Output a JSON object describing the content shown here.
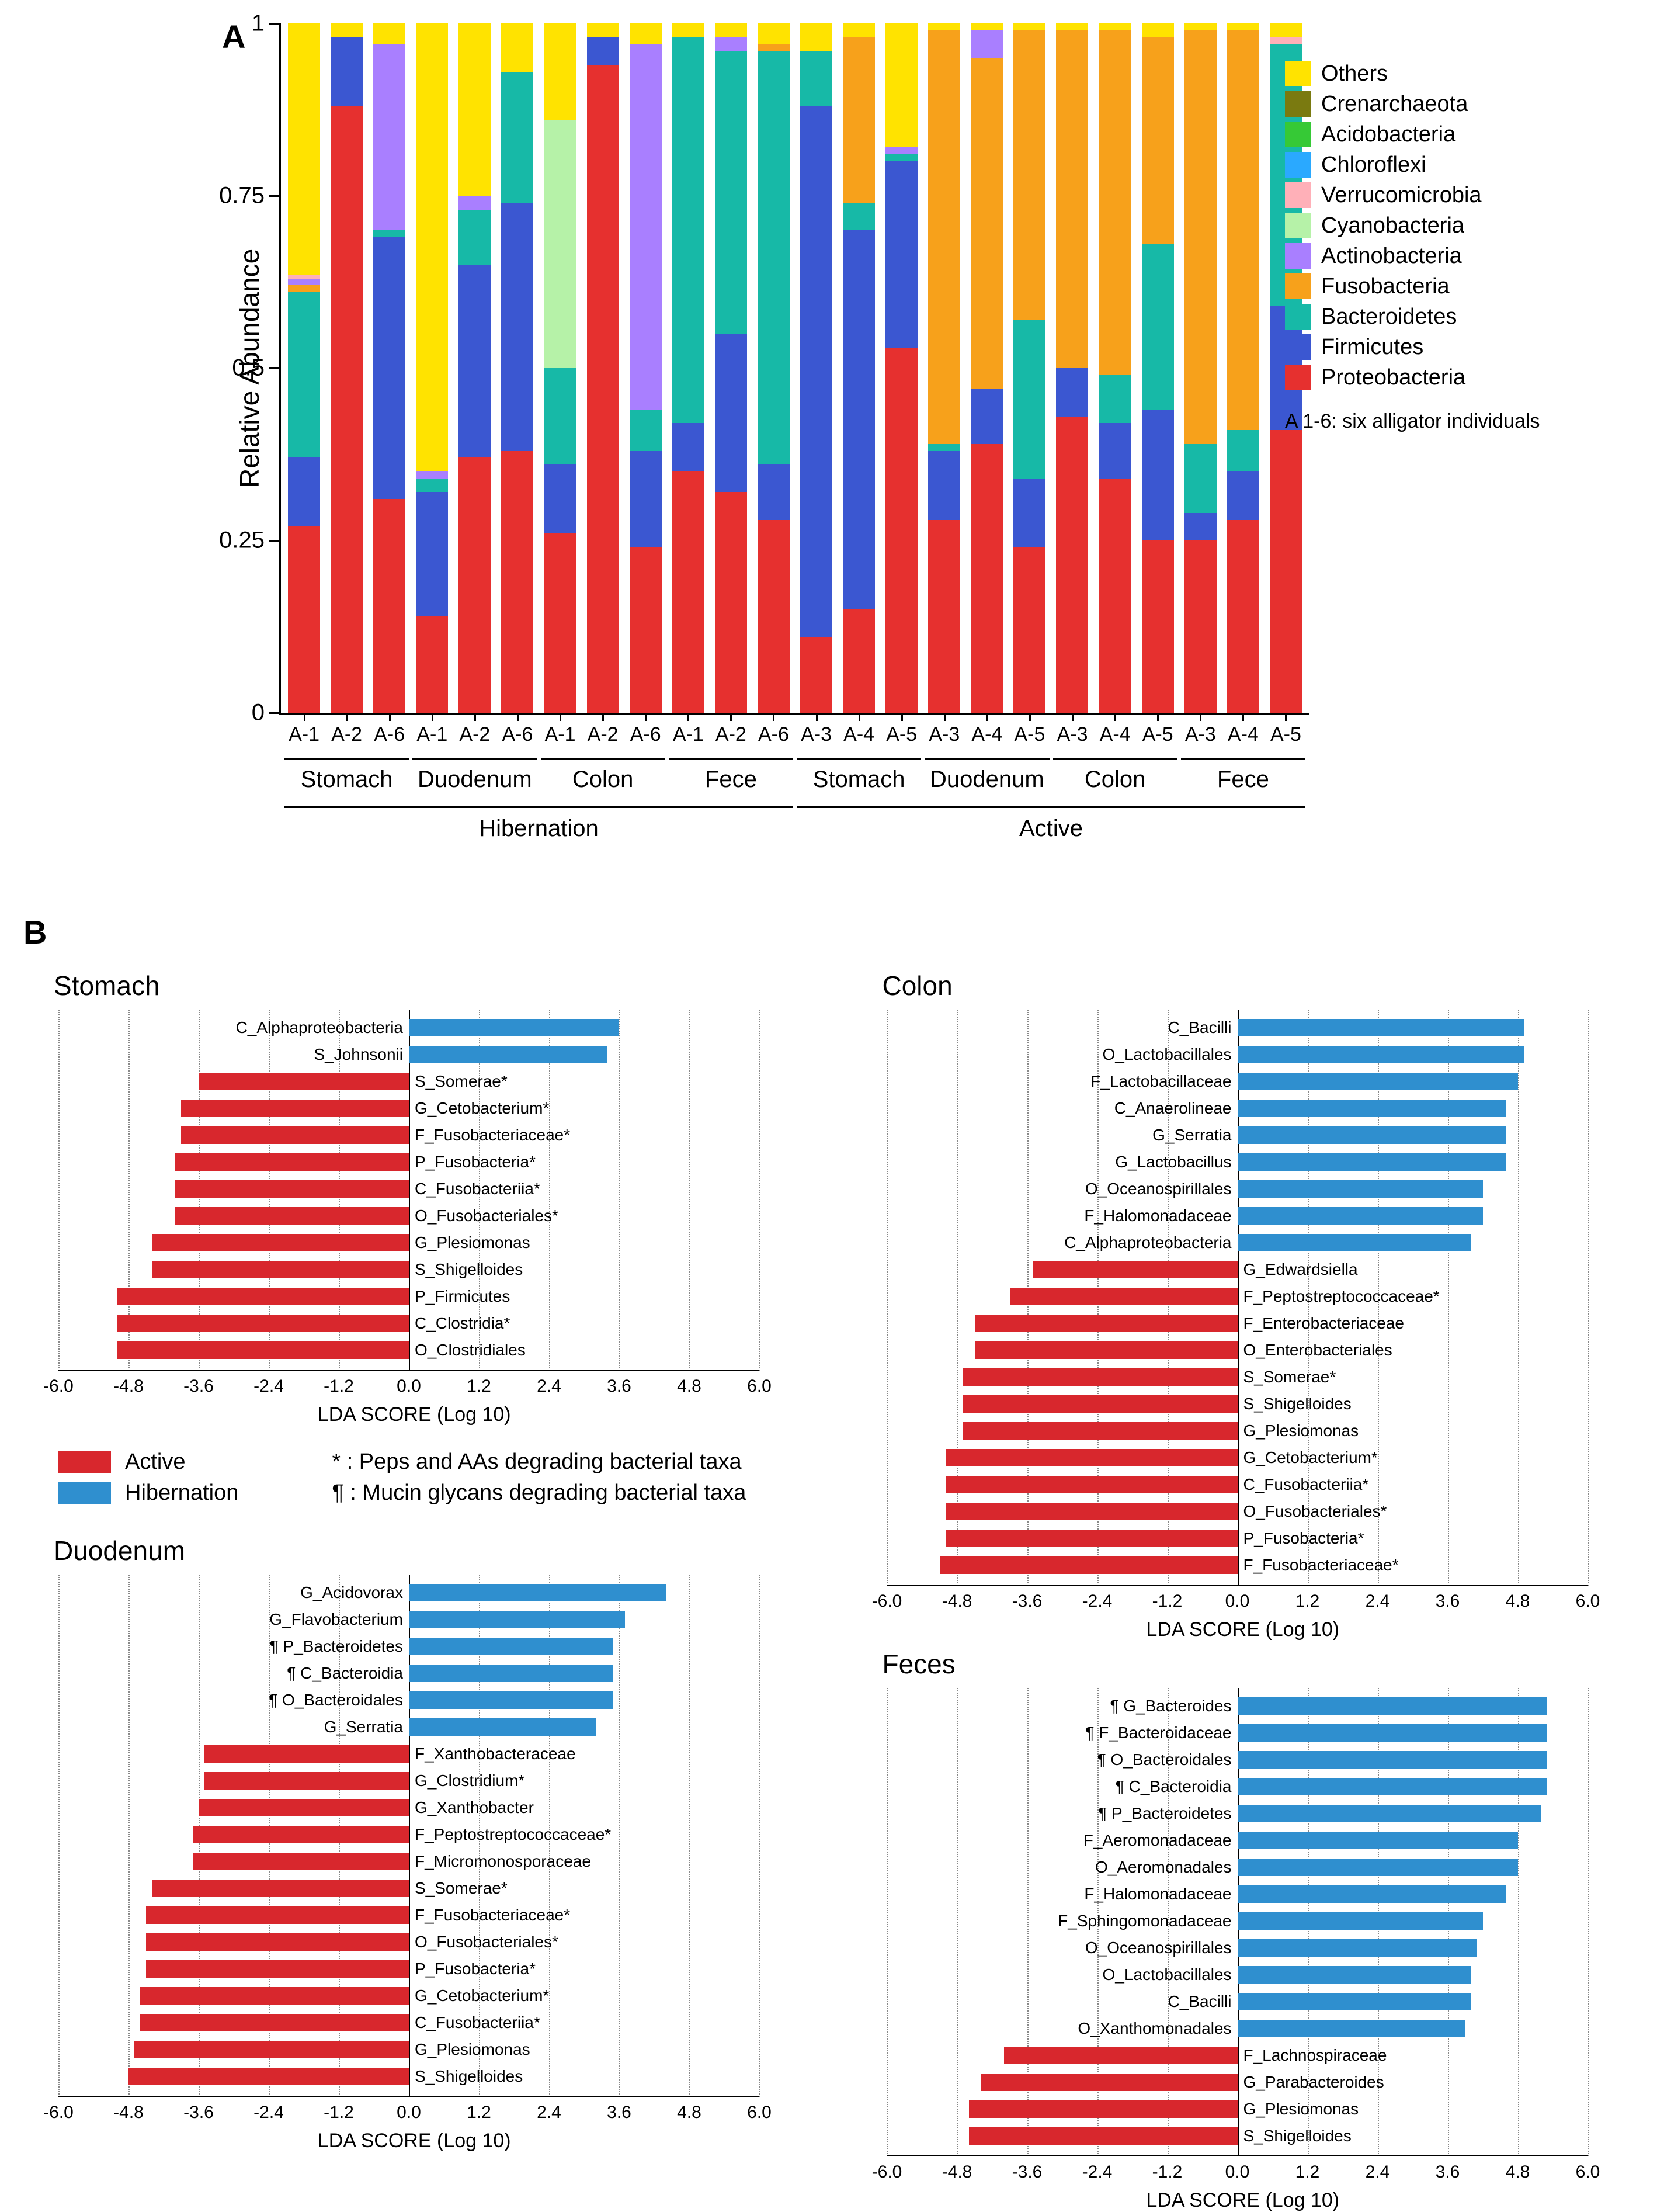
{
  "colors": {
    "active": "#d8272d",
    "hibernation": "#2f8fcf",
    "axis": "#000000",
    "grid": "#888888"
  },
  "panelA": {
    "label": "A",
    "ylabel": "Relative Abundance",
    "yticks": [
      0,
      0.25,
      0.5,
      0.75,
      1
    ],
    "note": "A 1-6: six alligator individuals",
    "taxa": [
      {
        "name": "Others",
        "color": "#ffe300"
      },
      {
        "name": "Crenarchaeota",
        "color": "#7a7a10"
      },
      {
        "name": "Acidobacteria",
        "color": "#36c936"
      },
      {
        "name": "Chloroflexi",
        "color": "#2aa9ff"
      },
      {
        "name": "Verrucomicrobia",
        "color": "#ffb0b8"
      },
      {
        "name": "Cyanobacteria",
        "color": "#b6f2a8"
      },
      {
        "name": "Actinobacteria",
        "color": "#a97fff"
      },
      {
        "name": "Fusobacteria",
        "color": "#f7a11b"
      },
      {
        "name": "Bacteroidetes",
        "color": "#17b9a7"
      },
      {
        "name": "Firmicutes",
        "color": "#3b57d1"
      },
      {
        "name": "Proteobacteria",
        "color": "#e6302f"
      }
    ],
    "samples": [
      {
        "id": "A-1",
        "vals": {
          "Proteobacteria": 0.27,
          "Firmicutes": 0.1,
          "Bacteroidetes": 0.24,
          "Fusobacteria": 0.01,
          "Actinobacteria": 0.01,
          "Verrucomicrobia": 0.005,
          "Others": 0.365
        }
      },
      {
        "id": "A-2",
        "vals": {
          "Proteobacteria": 0.88,
          "Firmicutes": 0.1,
          "Others": 0.02
        }
      },
      {
        "id": "A-6",
        "vals": {
          "Proteobacteria": 0.31,
          "Firmicutes": 0.38,
          "Bacteroidetes": 0.01,
          "Actinobacteria": 0.27,
          "Others": 0.03
        }
      },
      {
        "id": "A-1",
        "vals": {
          "Proteobacteria": 0.14,
          "Firmicutes": 0.18,
          "Bacteroidetes": 0.02,
          "Actinobacteria": 0.01,
          "Others": 0.65
        }
      },
      {
        "id": "A-2",
        "vals": {
          "Proteobacteria": 0.37,
          "Firmicutes": 0.28,
          "Bacteroidetes": 0.08,
          "Actinobacteria": 0.02,
          "Others": 0.25
        }
      },
      {
        "id": "A-6",
        "vals": {
          "Proteobacteria": 0.38,
          "Firmicutes": 0.36,
          "Bacteroidetes": 0.19,
          "Others": 0.07
        }
      },
      {
        "id": "A-1",
        "vals": {
          "Proteobacteria": 0.26,
          "Firmicutes": 0.1,
          "Bacteroidetes": 0.14,
          "Cyanobacteria": 0.36,
          "Others": 0.14
        }
      },
      {
        "id": "A-2",
        "vals": {
          "Proteobacteria": 0.94,
          "Firmicutes": 0.04,
          "Others": 0.02
        }
      },
      {
        "id": "A-6",
        "vals": {
          "Proteobacteria": 0.24,
          "Firmicutes": 0.14,
          "Bacteroidetes": 0.06,
          "Actinobacteria": 0.53,
          "Others": 0.03
        }
      },
      {
        "id": "A-1",
        "vals": {
          "Proteobacteria": 0.35,
          "Firmicutes": 0.07,
          "Bacteroidetes": 0.56,
          "Others": 0.02
        }
      },
      {
        "id": "A-2",
        "vals": {
          "Proteobacteria": 0.32,
          "Firmicutes": 0.23,
          "Bacteroidetes": 0.41,
          "Actinobacteria": 0.02,
          "Others": 0.02
        }
      },
      {
        "id": "A-6",
        "vals": {
          "Proteobacteria": 0.28,
          "Firmicutes": 0.08,
          "Bacteroidetes": 0.6,
          "Fusobacteria": 0.01,
          "Others": 0.03
        }
      },
      {
        "id": "A-3",
        "vals": {
          "Proteobacteria": 0.11,
          "Firmicutes": 0.77,
          "Bacteroidetes": 0.08,
          "Others": 0.04
        }
      },
      {
        "id": "A-4",
        "vals": {
          "Proteobacteria": 0.15,
          "Firmicutes": 0.55,
          "Bacteroidetes": 0.04,
          "Fusobacteria": 0.24,
          "Others": 0.02
        }
      },
      {
        "id": "A-5",
        "vals": {
          "Proteobacteria": 0.53,
          "Firmicutes": 0.27,
          "Bacteroidetes": 0.01,
          "Actinobacteria": 0.01,
          "Others": 0.18
        }
      },
      {
        "id": "A-3",
        "vals": {
          "Proteobacteria": 0.28,
          "Firmicutes": 0.1,
          "Bacteroidetes": 0.01,
          "Fusobacteria": 0.6,
          "Others": 0.01
        }
      },
      {
        "id": "A-4",
        "vals": {
          "Proteobacteria": 0.39,
          "Firmicutes": 0.08,
          "Actinobacteria": 0.04,
          "Fusobacteria": 0.48,
          "Others": 0.01
        }
      },
      {
        "id": "A-5",
        "vals": {
          "Proteobacteria": 0.24,
          "Firmicutes": 0.1,
          "Bacteroidetes": 0.23,
          "Fusobacteria": 0.42,
          "Others": 0.01
        }
      },
      {
        "id": "A-3",
        "vals": {
          "Proteobacteria": 0.43,
          "Firmicutes": 0.07,
          "Fusobacteria": 0.49,
          "Others": 0.01
        }
      },
      {
        "id": "A-4",
        "vals": {
          "Proteobacteria": 0.34,
          "Firmicutes": 0.08,
          "Bacteroidetes": 0.07,
          "Fusobacteria": 0.5,
          "Others": 0.01
        }
      },
      {
        "id": "A-5",
        "vals": {
          "Proteobacteria": 0.25,
          "Firmicutes": 0.19,
          "Bacteroidetes": 0.24,
          "Fusobacteria": 0.3,
          "Others": 0.02
        }
      },
      {
        "id": "A-3",
        "vals": {
          "Proteobacteria": 0.25,
          "Firmicutes": 0.04,
          "Bacteroidetes": 0.1,
          "Fusobacteria": 0.6,
          "Others": 0.01
        }
      },
      {
        "id": "A-4",
        "vals": {
          "Proteobacteria": 0.28,
          "Firmicutes": 0.07,
          "Bacteroidetes": 0.06,
          "Fusobacteria": 0.58,
          "Others": 0.01
        }
      },
      {
        "id": "A-5",
        "vals": {
          "Proteobacteria": 0.41,
          "Firmicutes": 0.18,
          "Bacteroidetes": 0.38,
          "Verrucomicrobia": 0.01,
          "Others": 0.02
        }
      }
    ],
    "sections": [
      {
        "label": "Stomach",
        "span": [
          0,
          2
        ]
      },
      {
        "label": "Duodenum",
        "span": [
          3,
          5
        ]
      },
      {
        "label": "Colon",
        "span": [
          6,
          8
        ]
      },
      {
        "label": "Fece",
        "span": [
          9,
          11
        ]
      },
      {
        "label": "Stomach",
        "span": [
          12,
          14
        ]
      },
      {
        "label": "Duodenum",
        "span": [
          15,
          17
        ]
      },
      {
        "label": "Colon",
        "span": [
          18,
          20
        ]
      },
      {
        "label": "Fece",
        "span": [
          21,
          23
        ]
      }
    ],
    "periods": [
      {
        "label": "Hibernation",
        "span": [
          0,
          11
        ]
      },
      {
        "label": "Active",
        "span": [
          12,
          23
        ]
      }
    ]
  },
  "panelB": {
    "label": "B",
    "xlabel": "LDA SCORE (Log 10)",
    "xticks": [
      -6.0,
      -4.8,
      -3.6,
      -2.4,
      -1.2,
      0.0,
      1.2,
      2.4,
      3.6,
      4.8,
      6.0
    ],
    "legend": {
      "active": "Active",
      "hibernation": "Hibernation",
      "note_star": "* : Peps and AAs degrading bacterial taxa",
      "note_para": "¶ : Mucin glycans degrading bacterial taxa"
    },
    "charts": [
      {
        "title": "Stomach",
        "rows": [
          {
            "label": "C_Alphaproteobacteria",
            "val": 3.6,
            "grp": "h"
          },
          {
            "label": "S_Johnsonii",
            "val": 3.4,
            "grp": "h"
          },
          {
            "label": "S_Somerae*",
            "val": -3.6,
            "grp": "a"
          },
          {
            "label": "G_Cetobacterium*",
            "val": -3.9,
            "grp": "a"
          },
          {
            "label": "F_Fusobacteriaceae*",
            "val": -3.9,
            "grp": "a"
          },
          {
            "label": "P_Fusobacteria*",
            "val": -4.0,
            "grp": "a"
          },
          {
            "label": "C_Fusobacteriia*",
            "val": -4.0,
            "grp": "a"
          },
          {
            "label": "O_Fusobacteriales*",
            "val": -4.0,
            "grp": "a"
          },
          {
            "label": "G_Plesiomonas",
            "val": -4.4,
            "grp": "a"
          },
          {
            "label": "S_Shigelloides",
            "val": -4.4,
            "grp": "a"
          },
          {
            "label": "P_Firmicutes",
            "val": -5.0,
            "grp": "a"
          },
          {
            "label": "C_Clostridia*",
            "val": -5.0,
            "grp": "a"
          },
          {
            "label": "O_Clostridiales",
            "val": -5.0,
            "grp": "a"
          }
        ]
      },
      {
        "title": "Colon",
        "rows": [
          {
            "label": "C_Bacilli",
            "val": 4.9,
            "grp": "h"
          },
          {
            "label": "O_Lactobacillales",
            "val": 4.9,
            "grp": "h"
          },
          {
            "label": "F_Lactobacillaceae",
            "val": 4.8,
            "grp": "h"
          },
          {
            "label": "C_Anaerolineae",
            "val": 4.6,
            "grp": "h"
          },
          {
            "label": "G_Serratia",
            "val": 4.6,
            "grp": "h"
          },
          {
            "label": "G_Lactobacillus",
            "val": 4.6,
            "grp": "h"
          },
          {
            "label": "O_Oceanospirillales",
            "val": 4.2,
            "grp": "h"
          },
          {
            "label": "F_Halomonadaceae",
            "val": 4.2,
            "grp": "h"
          },
          {
            "label": "C_Alphaproteobacteria",
            "val": 4.0,
            "grp": "h"
          },
          {
            "label": "G_Edwardsiella",
            "val": -3.5,
            "grp": "a"
          },
          {
            "label": "F_Peptostreptococcaceae*",
            "val": -3.9,
            "grp": "a"
          },
          {
            "label": "F_Enterobacteriaceae",
            "val": -4.5,
            "grp": "a"
          },
          {
            "label": "O_Enterobacteriales",
            "val": -4.5,
            "grp": "a"
          },
          {
            "label": "S_Somerae*",
            "val": -4.7,
            "grp": "a"
          },
          {
            "label": "S_Shigelloides",
            "val": -4.7,
            "grp": "a"
          },
          {
            "label": "G_Plesiomonas",
            "val": -4.7,
            "grp": "a"
          },
          {
            "label": "G_Cetobacterium*",
            "val": -5.0,
            "grp": "a"
          },
          {
            "label": "C_Fusobacteriia*",
            "val": -5.0,
            "grp": "a"
          },
          {
            "label": "O_Fusobacteriales*",
            "val": -5.0,
            "grp": "a"
          },
          {
            "label": "P_Fusobacteria*",
            "val": -5.0,
            "grp": "a"
          },
          {
            "label": "F_Fusobacteriaceae*",
            "val": -5.1,
            "grp": "a"
          }
        ]
      },
      {
        "title": "Duodenum",
        "rows": [
          {
            "label": "G_Acidovorax",
            "val": 4.4,
            "grp": "h"
          },
          {
            "label": "G_Flavobacterium",
            "val": 3.7,
            "grp": "h"
          },
          {
            "label": "¶ P_Bacteroidetes",
            "val": 3.5,
            "grp": "h"
          },
          {
            "label": "¶ C_Bacteroidia",
            "val": 3.5,
            "grp": "h"
          },
          {
            "label": "¶ O_Bacteroidales",
            "val": 3.5,
            "grp": "h"
          },
          {
            "label": "G_Serratia",
            "val": 3.2,
            "grp": "h"
          },
          {
            "label": "F_Xanthobacteraceae",
            "val": -3.5,
            "grp": "a"
          },
          {
            "label": "G_Clostridium*",
            "val": -3.5,
            "grp": "a"
          },
          {
            "label": "G_Xanthobacter",
            "val": -3.6,
            "grp": "a"
          },
          {
            "label": "F_Peptostreptococcaceae*",
            "val": -3.7,
            "grp": "a"
          },
          {
            "label": "F_Micromonosporaceae",
            "val": -3.7,
            "grp": "a"
          },
          {
            "label": "S_Somerae*",
            "val": -4.4,
            "grp": "a"
          },
          {
            "label": "F_Fusobacteriaceae*",
            "val": -4.5,
            "grp": "a"
          },
          {
            "label": "O_Fusobacteriales*",
            "val": -4.5,
            "grp": "a"
          },
          {
            "label": "P_Fusobacteria*",
            "val": -4.5,
            "grp": "a"
          },
          {
            "label": "G_Cetobacterium*",
            "val": -4.6,
            "grp": "a"
          },
          {
            "label": "C_Fusobacteriia*",
            "val": -4.6,
            "grp": "a"
          },
          {
            "label": "G_Plesiomonas",
            "val": -4.7,
            "grp": "a"
          },
          {
            "label": "S_Shigelloides",
            "val": -4.8,
            "grp": "a"
          }
        ]
      },
      {
        "title": "Feces",
        "rows": [
          {
            "label": "¶ G_Bacteroides",
            "val": 5.3,
            "grp": "h"
          },
          {
            "label": "¶ F_Bacteroidaceae",
            "val": 5.3,
            "grp": "h"
          },
          {
            "label": "¶ O_Bacteroidales",
            "val": 5.3,
            "grp": "h"
          },
          {
            "label": "¶ C_Bacteroidia",
            "val": 5.3,
            "grp": "h"
          },
          {
            "label": "¶ P_Bacteroidetes",
            "val": 5.2,
            "grp": "h"
          },
          {
            "label": "F_Aeromonadaceae",
            "val": 4.8,
            "grp": "h"
          },
          {
            "label": "O_Aeromonadales",
            "val": 4.8,
            "grp": "h"
          },
          {
            "label": "F_Halomonadaceae",
            "val": 4.6,
            "grp": "h"
          },
          {
            "label": "F_Sphingomonadaceae",
            "val": 4.2,
            "grp": "h"
          },
          {
            "label": "O_Oceanospirillales",
            "val": 4.1,
            "grp": "h"
          },
          {
            "label": "O_Lactobacillales",
            "val": 4.0,
            "grp": "h"
          },
          {
            "label": "C_Bacilli",
            "val": 4.0,
            "grp": "h"
          },
          {
            "label": "O_Xanthomonadales",
            "val": 3.9,
            "grp": "h"
          },
          {
            "label": "F_Lachnospiraceae",
            "val": -4.0,
            "grp": "a"
          },
          {
            "label": "G_Parabacteroides",
            "val": -4.4,
            "grp": "a"
          },
          {
            "label": "G_Plesiomonas",
            "val": -4.6,
            "grp": "a"
          },
          {
            "label": "S_Shigelloides",
            "val": -4.6,
            "grp": "a"
          }
        ]
      }
    ]
  }
}
